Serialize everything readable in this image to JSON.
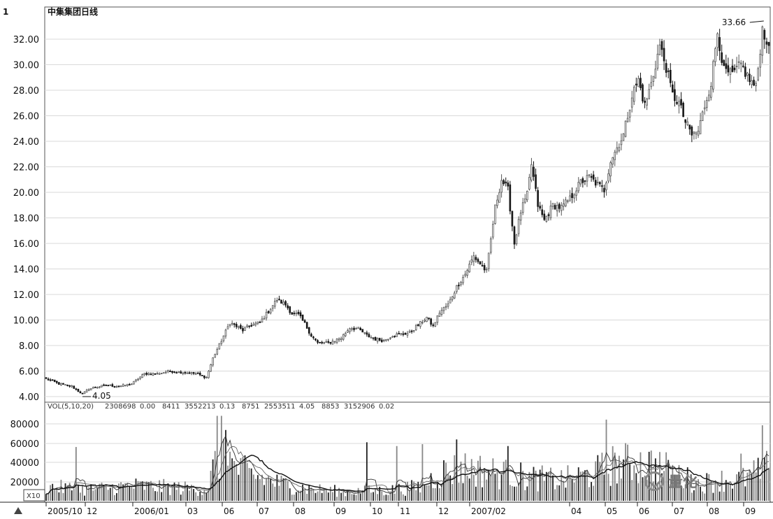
{
  "chart_data": {
    "type": "candlestick",
    "title": "中集集团日线",
    "corner_mark": "1",
    "price_ylim": [
      4,
      34
    ],
    "price_ticks": [
      "4.00",
      "6.00",
      "8.00",
      "10.00",
      "12.00",
      "14.00",
      "16.00",
      "18.00",
      "20.00",
      "22.00",
      "24.00",
      "26.00",
      "28.00",
      "30.00",
      "32.00"
    ],
    "grid": true,
    "x_labels": [
      "2005/10",
      "12",
      "2006/01",
      "03",
      "06",
      "07",
      "08",
      "09",
      "10",
      "11",
      "12",
      "2007/02",
      "04",
      "05",
      "06",
      "07",
      "08",
      "09"
    ],
    "price_keypoints": [
      [
        0,
        5.4
      ],
      [
        6,
        5.0
      ],
      [
        12,
        4.8
      ],
      [
        17,
        4.2
      ],
      [
        20,
        4.6
      ],
      [
        28,
        4.9
      ],
      [
        34,
        4.8
      ],
      [
        40,
        5.0
      ],
      [
        46,
        5.8
      ],
      [
        52,
        5.8
      ],
      [
        58,
        6.0
      ],
      [
        64,
        5.9
      ],
      [
        70,
        5.8
      ],
      [
        75,
        5.5
      ],
      [
        78,
        7.0
      ],
      [
        82,
        8.4
      ],
      [
        86,
        9.8
      ],
      [
        92,
        9.2
      ],
      [
        96,
        9.6
      ],
      [
        100,
        9.8
      ],
      [
        104,
        10.7
      ],
      [
        108,
        11.6
      ],
      [
        112,
        11.2
      ],
      [
        115,
        10.5
      ],
      [
        118,
        10.4
      ],
      [
        121,
        9.7
      ],
      [
        124,
        8.8
      ],
      [
        127,
        8.2
      ],
      [
        132,
        8.2
      ],
      [
        138,
        8.6
      ],
      [
        142,
        9.4
      ],
      [
        146,
        9.3
      ],
      [
        150,
        8.8
      ],
      [
        154,
        8.5
      ],
      [
        158,
        8.4
      ],
      [
        162,
        8.8
      ],
      [
        166,
        8.9
      ],
      [
        170,
        9.0
      ],
      [
        174,
        9.6
      ],
      [
        178,
        10.2
      ],
      [
        181,
        9.5
      ],
      [
        184,
        10.6
      ],
      [
        188,
        11.2
      ],
      [
        192,
        12.6
      ],
      [
        196,
        13.6
      ],
      [
        200,
        15.0
      ],
      [
        203,
        14.4
      ],
      [
        206,
        13.8
      ],
      [
        210,
        18.8
      ],
      [
        213,
        21.0
      ],
      [
        216,
        20.2
      ],
      [
        219,
        16.0
      ],
      [
        222,
        18.5
      ],
      [
        225,
        19.8
      ],
      [
        227,
        22.2
      ],
      [
        230,
        19.0
      ],
      [
        233,
        17.8
      ],
      [
        237,
        19.0
      ],
      [
        241,
        18.8
      ],
      [
        245,
        19.5
      ],
      [
        250,
        20.8
      ],
      [
        254,
        21.2
      ],
      [
        258,
        20.6
      ],
      [
        261,
        20.2
      ],
      [
        264,
        22.5
      ],
      [
        267,
        23.5
      ],
      [
        270,
        24.5
      ],
      [
        274,
        27.6
      ],
      [
        277,
        28.8
      ],
      [
        280,
        26.8
      ],
      [
        283,
        28.5
      ],
      [
        287,
        31.5
      ],
      [
        290,
        29.8
      ],
      [
        293,
        27.6
      ],
      [
        296,
        27.0
      ],
      [
        299,
        25.5
      ],
      [
        302,
        24.5
      ],
      [
        305,
        24.8
      ],
      [
        308,
        26.8
      ],
      [
        311,
        28.6
      ],
      [
        314,
        32.6
      ],
      [
        317,
        29.5
      ],
      [
        321,
        29.2
      ],
      [
        325,
        30.0
      ],
      [
        329,
        28.8
      ],
      [
        332,
        28.2
      ],
      [
        335,
        32.8
      ],
      [
        338,
        31.5
      ]
    ],
    "hi_label": "33.66",
    "lo_label": "4.05",
    "hi_index": 335,
    "lo_index": 17,
    "volume": {
      "legend": "VOL(5,10,20)",
      "legend_values": [
        "2308698",
        "0.00",
        "8411",
        "3552213",
        "0.13",
        "8751",
        "2553511",
        "4.05",
        "8853",
        "3152906",
        "0.02"
      ],
      "ylim": [
        0,
        900000
      ],
      "ticks": [
        "20000",
        "40000",
        "60000",
        "80000"
      ],
      "multiplier_label": "X10",
      "volume_keypoints": [
        [
          0,
          15000
        ],
        [
          20,
          12000
        ],
        [
          40,
          16000
        ],
        [
          60,
          14000
        ],
        [
          75,
          12000
        ],
        [
          80,
          45000
        ],
        [
          86,
          38000
        ],
        [
          95,
          28000
        ],
        [
          110,
          18000
        ],
        [
          125,
          12000
        ],
        [
          140,
          10000
        ],
        [
          160,
          11000
        ],
        [
          175,
          15000
        ],
        [
          185,
          30000
        ],
        [
          195,
          35000
        ],
        [
          210,
          30000
        ],
        [
          225,
          25000
        ],
        [
          240,
          22000
        ],
        [
          255,
          28000
        ],
        [
          265,
          38000
        ],
        [
          275,
          40000
        ],
        [
          285,
          38000
        ],
        [
          295,
          28000
        ],
        [
          305,
          18000
        ],
        [
          315,
          22000
        ],
        [
          325,
          22000
        ],
        [
          338,
          35000
        ]
      ],
      "spikes": [
        [
          80,
          900000
        ],
        [
          82,
          900000
        ],
        [
          84,
          750000
        ],
        [
          86,
          520000
        ],
        [
          14,
          570000
        ],
        [
          150,
          620000
        ],
        [
          164,
          580000
        ],
        [
          176,
          600000
        ],
        [
          192,
          650000
        ],
        [
          216,
          580000
        ],
        [
          262,
          860000
        ],
        [
          325,
          500000
        ],
        [
          335,
          800000
        ]
      ]
    }
  },
  "watermark": {
    "text": "量化"
  }
}
